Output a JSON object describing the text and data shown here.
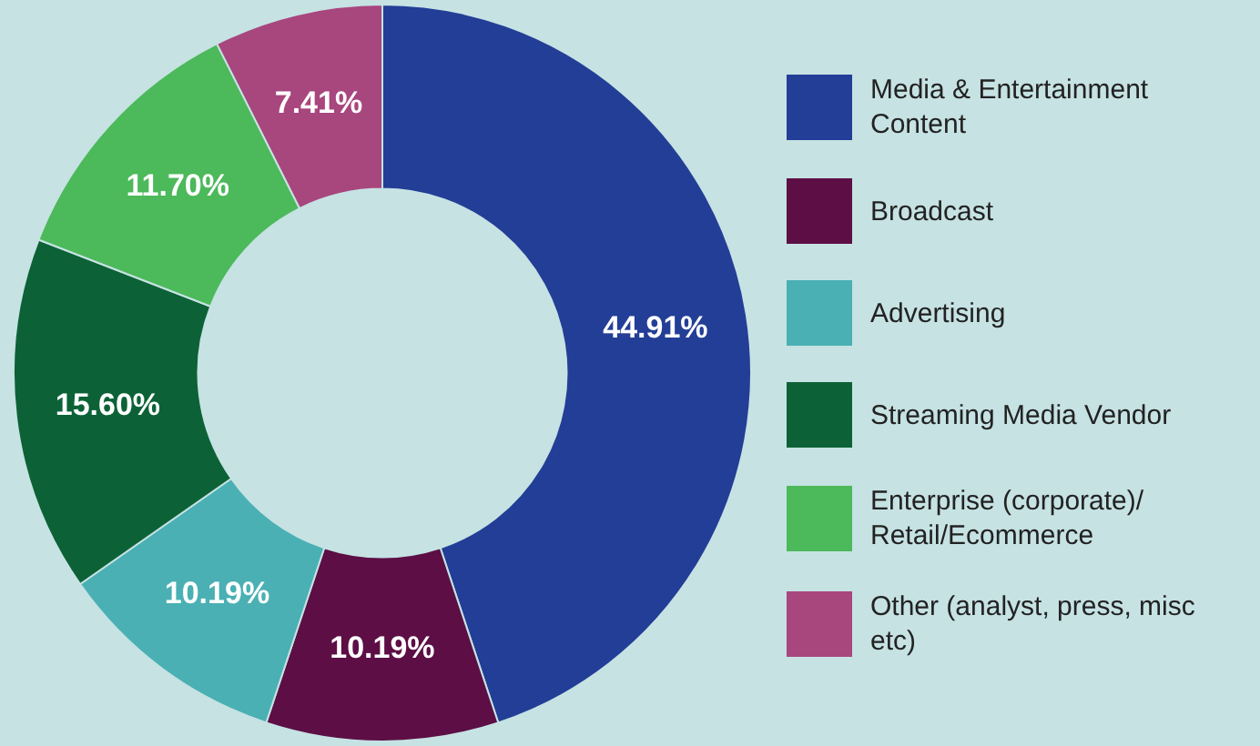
{
  "chart_data": {
    "type": "donut",
    "categories": [
      "Media & Entertainment Content",
      "Broadcast",
      "Advertising",
      "Streaming Media Vendor",
      "Enterprise (corporate)/ Retail/Ecommerce",
      "Other (analyst, press, misc etc)"
    ],
    "values": [
      44.91,
      10.19,
      10.19,
      15.6,
      11.7,
      7.41
    ],
    "colors": [
      "#233e96",
      "#5c0e45",
      "#4ab0b4",
      "#0c6236",
      "#4cb95a",
      "#a8467e"
    ],
    "value_labels": [
      "44.91%",
      "10.19%",
      "10.19%",
      "15.60%",
      "11.70%",
      "7.41%"
    ],
    "legend": "right"
  }
}
